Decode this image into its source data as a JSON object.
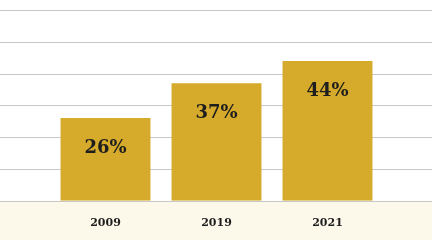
{
  "chart_data": {
    "type": "bar",
    "categories": [
      "2009",
      "2019",
      "2021"
    ],
    "values": [
      26,
      37,
      44
    ],
    "value_labels": [
      "26%",
      "37%",
      "44%"
    ],
    "data_labels": true,
    "color": "#d6aa2a",
    "ylim": [
      0,
      60
    ],
    "yticks": [
      0,
      10,
      20,
      30,
      40,
      50,
      60
    ],
    "grid": true,
    "tick_labels": "x"
  }
}
